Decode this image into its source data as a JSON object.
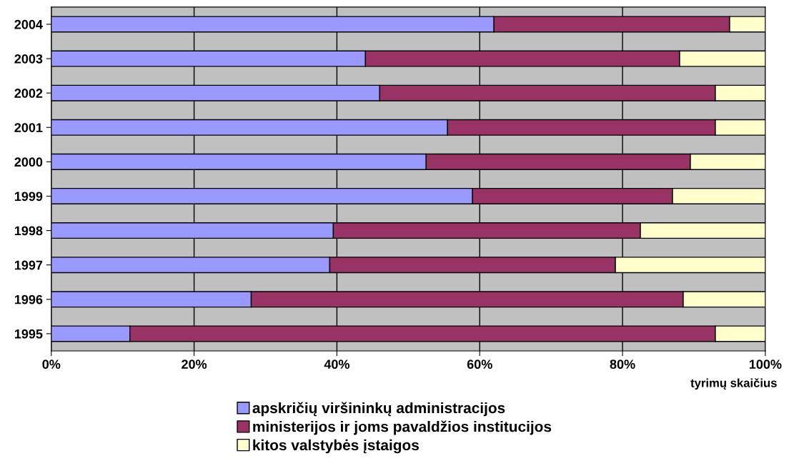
{
  "chart_data": {
    "type": "bar",
    "orientation": "horizontal",
    "stacked": true,
    "xlabel": "tyrimų skaičius",
    "categories": [
      "2004",
      "2003",
      "2002",
      "2001",
      "2000",
      "1999",
      "1998",
      "1997",
      "1996",
      "1995"
    ],
    "series": [
      {
        "name": "apskričių viršininkų administracijos",
        "color": "#9999ff",
        "values": [
          62,
          44,
          46,
          55.5,
          52.5,
          59,
          39.5,
          39,
          28,
          11
        ]
      },
      {
        "name": "ministerijos ir joms pavaldžios institucijos",
        "color": "#993366",
        "values": [
          33,
          44,
          47,
          37.5,
          37,
          28,
          43,
          40,
          60.5,
          82
        ]
      },
      {
        "name": "kitos valstybės įstaigos",
        "color": "#ffffcc",
        "values": [
          5,
          12,
          7,
          7,
          10.5,
          13,
          17.5,
          21,
          11.5,
          7
        ]
      }
    ],
    "xlim": [
      0,
      100
    ],
    "xticks": [
      {
        "value": 0,
        "label": "0%"
      },
      {
        "value": 20,
        "label": "20%"
      },
      {
        "value": 40,
        "label": "40%"
      },
      {
        "value": 60,
        "label": "60%"
      },
      {
        "value": 80,
        "label": "80%"
      },
      {
        "value": 100,
        "label": "100%"
      }
    ],
    "grid": "x",
    "legend": "bottom"
  }
}
